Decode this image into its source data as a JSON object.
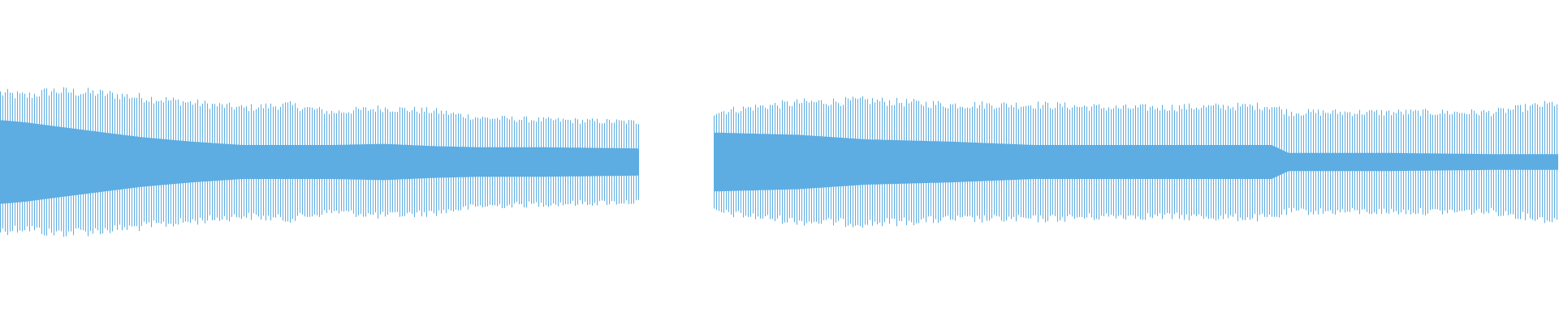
{
  "waveform": {
    "color": "#5dade2",
    "background": "#ffffff",
    "segments": [
      {
        "name": "segment-1",
        "start": 0.0,
        "end": 0.41,
        "levels": [
          {
            "at": 0.0,
            "outer": 0.64,
            "inner": 0.37
          },
          {
            "at": 0.04,
            "outer": 0.61,
            "inner": 0.35
          },
          {
            "at": 0.08,
            "outer": 0.66,
            "inner": 0.32
          },
          {
            "at": 0.15,
            "outer": 0.64,
            "inner": 0.27
          },
          {
            "at": 0.22,
            "outer": 0.6,
            "inner": 0.22
          },
          {
            "at": 0.3,
            "outer": 0.55,
            "inner": 0.18
          },
          {
            "at": 0.38,
            "outer": 0.5,
            "inner": 0.15
          },
          {
            "at": 0.45,
            "outer": 0.53,
            "inner": 0.15
          },
          {
            "at": 0.52,
            "outer": 0.46,
            "inner": 0.15
          },
          {
            "at": 0.6,
            "outer": 0.5,
            "inner": 0.16
          },
          {
            "at": 0.68,
            "outer": 0.47,
            "inner": 0.14
          },
          {
            "at": 0.75,
            "outer": 0.41,
            "inner": 0.13
          },
          {
            "at": 0.85,
            "outer": 0.39,
            "inner": 0.13
          },
          {
            "at": 1.0,
            "outer": 0.37,
            "inner": 0.12
          }
        ]
      },
      {
        "name": "segment-2",
        "start": 0.458,
        "end": 1.0,
        "levels": [
          {
            "at": 0.0,
            "outer": 0.46,
            "inner": 0.26
          },
          {
            "at": 0.05,
            "outer": 0.51,
            "inner": 0.25
          },
          {
            "at": 0.1,
            "outer": 0.55,
            "inner": 0.24
          },
          {
            "at": 0.18,
            "outer": 0.57,
            "inner": 0.2
          },
          {
            "at": 0.28,
            "outer": 0.53,
            "inner": 0.18
          },
          {
            "at": 0.38,
            "outer": 0.53,
            "inner": 0.15
          },
          {
            "at": 0.48,
            "outer": 0.5,
            "inner": 0.15
          },
          {
            "at": 0.58,
            "outer": 0.51,
            "inner": 0.15
          },
          {
            "at": 0.66,
            "outer": 0.52,
            "inner": 0.15
          },
          {
            "at": 0.68,
            "outer": 0.46,
            "inner": 0.08
          },
          {
            "at": 0.8,
            "outer": 0.46,
            "inner": 0.08
          },
          {
            "at": 0.92,
            "outer": 0.46,
            "inner": 0.07
          },
          {
            "at": 1.0,
            "outer": 0.55,
            "inner": 0.07
          }
        ]
      }
    ]
  }
}
